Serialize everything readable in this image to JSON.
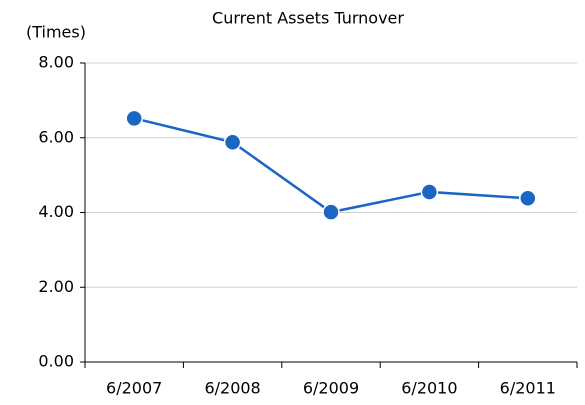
{
  "chart_data": {
    "type": "line",
    "title": "Current Assets Turnover",
    "y_label": "(Times)",
    "categories": [
      "6/2007",
      "6/2008",
      "6/2009",
      "6/2010",
      "6/2011"
    ],
    "series": [
      {
        "name": "Current Assets Turnover",
        "color": "#1a66c2",
        "values": [
          6.52,
          5.88,
          4.01,
          4.55,
          4.38
        ]
      }
    ],
    "ylim": [
      0,
      8
    ],
    "yticks": [
      {
        "value": 0,
        "label": "0.00"
      },
      {
        "value": 2,
        "label": "2.00"
      },
      {
        "value": 4,
        "label": "4.00"
      },
      {
        "value": 6,
        "label": "6.00"
      },
      {
        "value": 8,
        "label": "8.00"
      }
    ],
    "grid": true,
    "legend": false
  }
}
